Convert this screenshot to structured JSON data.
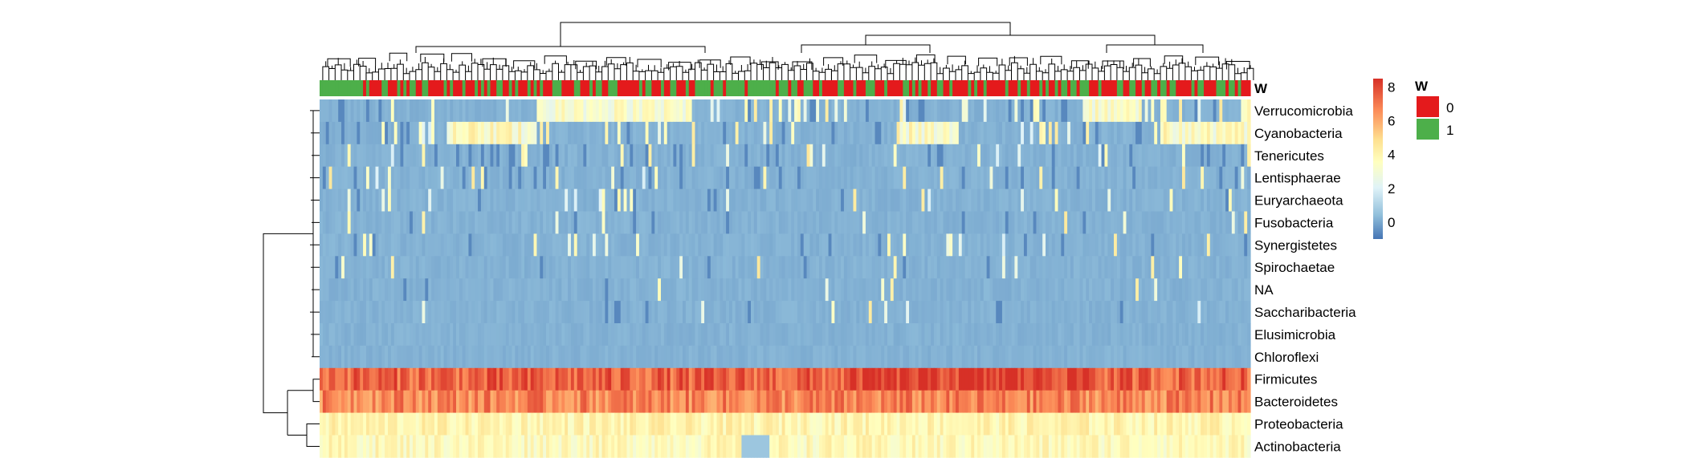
{
  "chart_data": {
    "type": "heatmap",
    "title": "",
    "annotation": {
      "name": "W",
      "legend_title": "W",
      "levels": [
        {
          "label": "0",
          "color": "#E41A1C"
        },
        {
          "label": "1",
          "color": "#4DAF4A"
        }
      ]
    },
    "rows": [
      "Verrucomicrobia",
      "Cyanobacteria",
      "Tenericutes",
      "Lentisphaerae",
      "Euryarchaeota",
      "Fusobacteria",
      "Synergistetes",
      "Spirochaetae",
      "NA",
      "Saccharibacteria",
      "Elusimicrobia",
      "Chloroflexi",
      "Firmicutes",
      "Bacteroidetes",
      "Proteobacteria",
      "Actinobacteria"
    ],
    "row_baseline": [
      0.4,
      0.3,
      0.3,
      0.2,
      0.2,
      0.1,
      0.1,
      0.05,
      0.05,
      0.05,
      0.0,
      0.0,
      7.6,
      7.0,
      4.3,
      4.0
    ],
    "color_scale": {
      "min": -1,
      "max": 8.5,
      "ticks": [
        "0",
        "2",
        "4",
        "6",
        "8"
      ],
      "tick_values": [
        0,
        2,
        4,
        6,
        8
      ],
      "colors": [
        "#4575B4",
        "#91BFDB",
        "#E0F3F8",
        "#FFFFBF",
        "#FEE090",
        "#FC8D59",
        "#D73027"
      ]
    },
    "row_dendrogram": true,
    "column_dendrogram": true
  }
}
